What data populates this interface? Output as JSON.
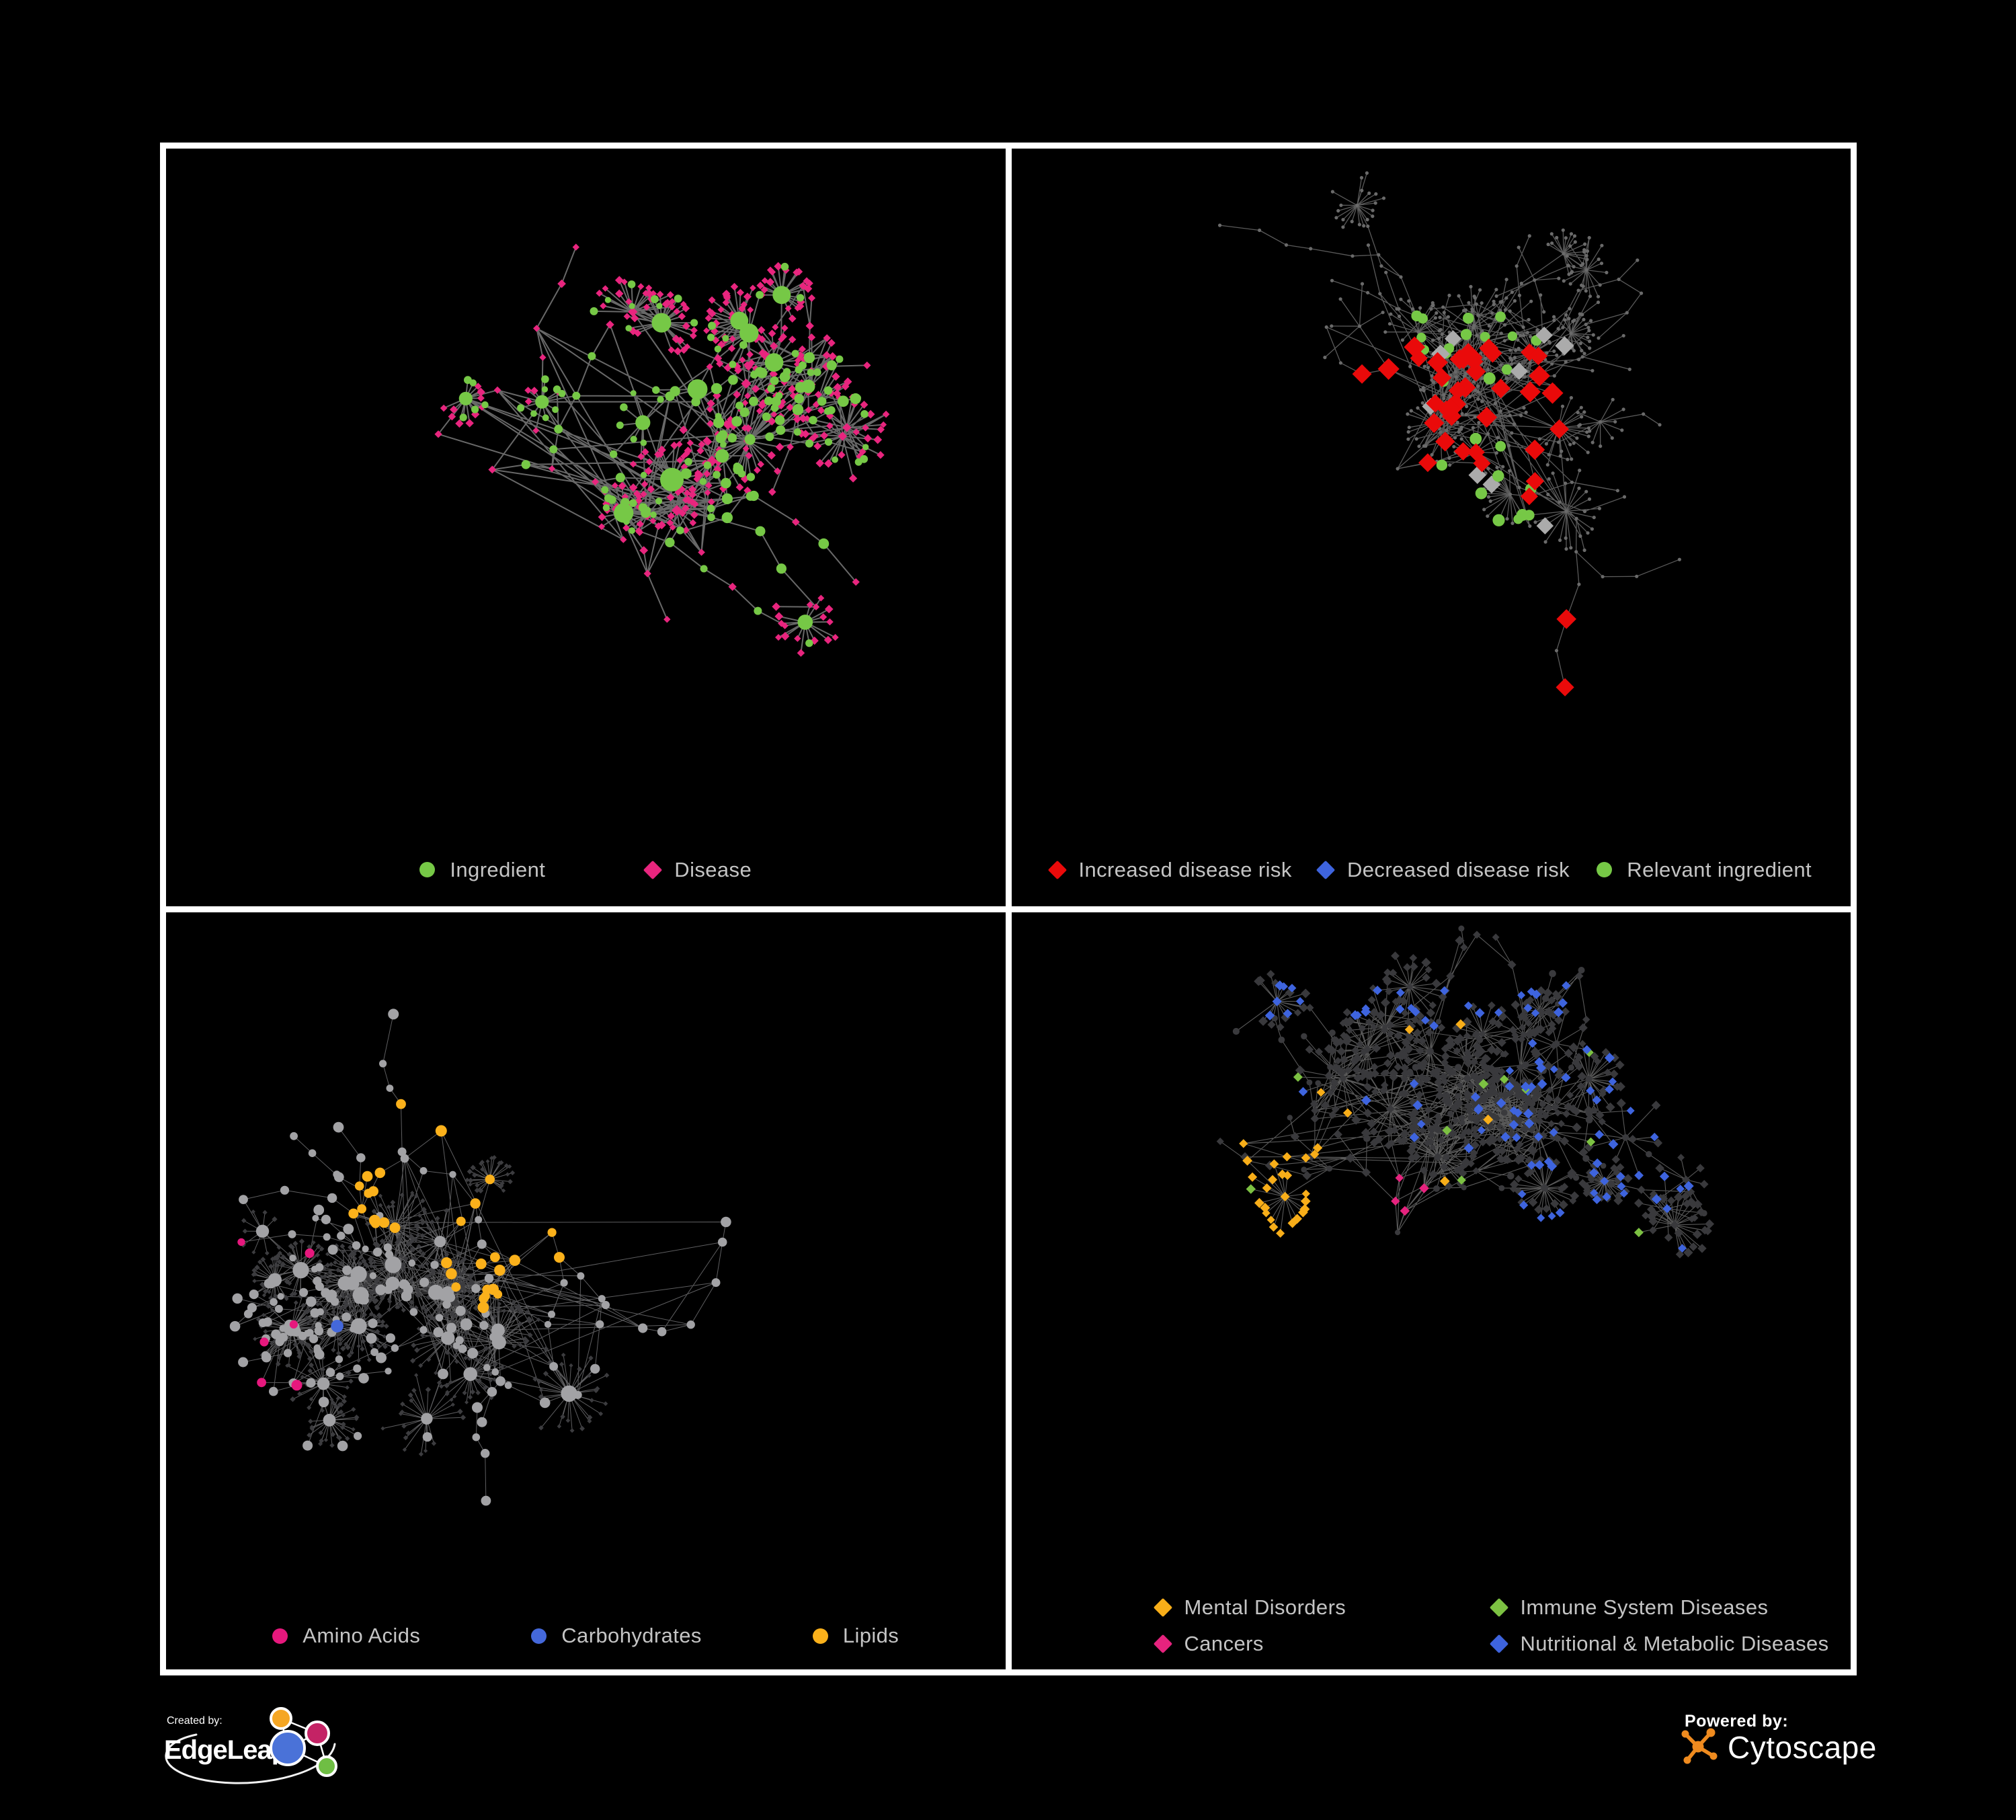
{
  "page": {
    "background": "#000000",
    "frame_border_color": "#ffffff",
    "panel_background": "#000000",
    "legend_text_color": "#c4c4c4"
  },
  "panels": [
    {
      "name": "ingredient-disease-network",
      "legend": [
        {
          "label": "Ingredient",
          "shape": "circle",
          "color": "#76C846"
        },
        {
          "label": "Disease",
          "shape": "diamond",
          "color": "#E8257E"
        }
      ],
      "network": {
        "seed": 101,
        "backbone": 205,
        "hubs": 26,
        "leaf_min": 4,
        "leaf_max": 24,
        "extra_links": 70,
        "edge_color": "#737373",
        "edge_width": 2,
        "edge_opacity": 0.9,
        "node_colors": {
          "ingredient": "#76C846",
          "disease": "#E8257E"
        }
      }
    },
    {
      "name": "disease-risk-network",
      "legend": [
        {
          "label": "Increased disease risk",
          "shape": "diamond",
          "color": "#EA0A0A"
        },
        {
          "label": "Decreased disease risk",
          "shape": "diamond",
          "color": "#3E64DE"
        },
        {
          "label": "Relevant ingredient",
          "shape": "circle",
          "color": "#76C846"
        }
      ],
      "network": {
        "seed": 202,
        "backbone": 215,
        "hubs": 24,
        "leaf_min": 4,
        "leaf_max": 22,
        "extra_links": 55,
        "edge_color": "#646464",
        "edge_width": 1.3,
        "edge_opacity": 0.9,
        "node_colors": {
          "base": "#6A6A6A",
          "increased": "#EA0A0A",
          "decreased": "#3E64DE",
          "neutral": "#ABABAB",
          "ingredient": "#76C846"
        },
        "highlight_counts": {
          "increased": 42,
          "decreased": 11,
          "neutral": 9,
          "ingredient": 34
        }
      }
    },
    {
      "name": "nutrient-class-network",
      "legend": [
        {
          "label": "Amino Acids",
          "shape": "circle",
          "color": "#E6187D"
        },
        {
          "label": "Carbohydrates",
          "shape": "circle",
          "color": "#4468DB"
        },
        {
          "label": "Lipids",
          "shape": "circle",
          "color": "#FBB11B"
        }
      ],
      "network": {
        "seed": 321,
        "backbone": 230,
        "hubs": 30,
        "leaf_min": 6,
        "leaf_max": 36,
        "extra_links": 95,
        "edge_color": "#98989B",
        "edge_width": 1,
        "edge_opacity": 0.62,
        "node_colors": {
          "ingredient": "#A2A2A5",
          "amino_acids": "#E6187D",
          "carbohydrates": "#4468DB",
          "lipids": "#FBB11B",
          "disease": "#3C3C3F"
        }
      }
    },
    {
      "name": "disease-category-network",
      "legend": [
        {
          "label": "Mental Disorders",
          "shape": "diamond",
          "color": "#F8AE19"
        },
        {
          "label": "Immune System Diseases",
          "shape": "diamond",
          "color": "#7CC142"
        },
        {
          "label": "Cancers",
          "shape": "diamond",
          "color": "#E6237E"
        },
        {
          "label": "Nutritional & Metabolic Diseases",
          "shape": "diamond",
          "color": "#3E64DE"
        }
      ],
      "network": {
        "seed": 404,
        "backbone": 235,
        "hubs": 30,
        "leaf_min": 6,
        "leaf_max": 32,
        "extra_links": 80,
        "edge_color": "#6F6F6F",
        "edge_width": 1.1,
        "edge_opacity": 0.8,
        "node_colors": {
          "base": "#39393C",
          "ingredient": "#3A3A3D",
          "mental": "#F8AE19",
          "immune": "#7CC142",
          "cancers": "#E6237E",
          "nutritional": "#3E64DE"
        }
      }
    }
  ],
  "footer": {
    "created_by_label": "Created by:",
    "created_by_brand": "EdgeLeap",
    "powered_by_label": "Powered by:",
    "powered_by_brand": "Cytoscape",
    "cytoscape_orange": "#EF8B1F",
    "edgeleap_node_colors": {
      "orange": "#F5A623",
      "magenta": "#C42365",
      "blue": "#4A72D8",
      "green": "#6FBE44"
    }
  }
}
